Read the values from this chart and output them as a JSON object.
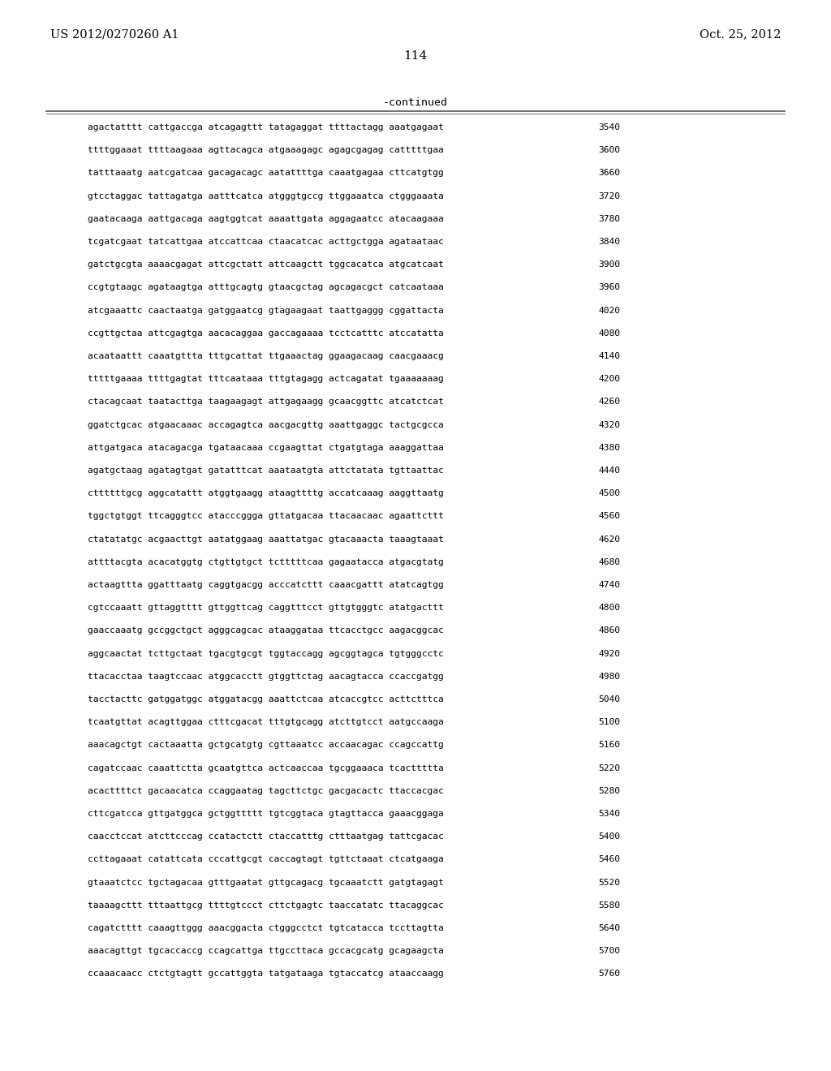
{
  "left_header": "US 2012/0270260 A1",
  "right_header": "Oct. 25, 2012",
  "page_number": "114",
  "continued_label": "-continued",
  "sequence_lines": [
    [
      "agactatttt",
      "cattgaccga",
      "atcagagttt",
      "tatagaggat",
      "ttttactagg",
      "aaatgagaat",
      "3540"
    ],
    [
      "ttttggaaat",
      "ttttaagaaa",
      "agttacagca",
      "atgaaagagc",
      "agagcgagag",
      "catttttgaa",
      "3600"
    ],
    [
      "tatttaaatg",
      "aatcgatcaa",
      "gacagacagc",
      "aatattttga",
      "caaatgagaa",
      "cttcatgtgg",
      "3660"
    ],
    [
      "gtcctaggac",
      "tattagatga",
      "aatttcatca",
      "atgggtgccg",
      "ttggaaatca",
      "ctgggaaata",
      "3720"
    ],
    [
      "gaatacaaga",
      "aattgacaga",
      "aagtggtcat",
      "aaaattgata",
      "aggagaatcc",
      "atacaagaaa",
      "3780"
    ],
    [
      "tcgatcgaat",
      "tatcattgaa",
      "atccattcaa",
      "ctaacatcac",
      "acttgctgga",
      "agataataac",
      "3840"
    ],
    [
      "gatctgcgta",
      "aaaacgagat",
      "attcgctatt",
      "attcaagctt",
      "tggcacatca",
      "atgcatcaat",
      "3900"
    ],
    [
      "ccgtgtaagc",
      "agataagtga",
      "atttgcagtg",
      "gtaacgctag",
      "agcagacgct",
      "catcaataaa",
      "3960"
    ],
    [
      "atcgaaattc",
      "caactaatga",
      "gatggaatcg",
      "gtagaagaat",
      "taattgaggg",
      "cggattacta",
      "4020"
    ],
    [
      "ccgttgctaa",
      "attcgagtga",
      "aacacaggaa",
      "gaccagaaaa",
      "tcctcatttc",
      "atccatatta",
      "4080"
    ],
    [
      "acaataattt",
      "caaatgttta",
      "tttgcattat",
      "ttgaaactag",
      "ggaagacaag",
      "caacgaaacg",
      "4140"
    ],
    [
      "tttttgaaaa",
      "ttttgagtat",
      "tttcaataaa",
      "tttgtagagg",
      "actcagatat",
      "tgaaaaaaag",
      "4200"
    ],
    [
      "ctacagcaat",
      "taatacttga",
      "taagaagagt",
      "attgagaagg",
      "gcaacggttc",
      "atcatctcat",
      "4260"
    ],
    [
      "ggatctgcac",
      "atgaacaaac",
      "accagagtca",
      "aacgacgttg",
      "aaattgaggc",
      "tactgcgcca",
      "4320"
    ],
    [
      "attgatgaca",
      "atacagacga",
      "tgataacaaa",
      "ccgaagttat",
      "ctgatgtaga",
      "aaaggattaa",
      "4380"
    ],
    [
      "agatgctaag",
      "agatagtgat",
      "gatatttcat",
      "aaataatgta",
      "attctatata",
      "tgttaattac",
      "4440"
    ],
    [
      "cttttttgcg",
      "aggcatattt",
      "atggtgaagg",
      "ataagttttg",
      "accatcaaag",
      "aaggttaatg",
      "4500"
    ],
    [
      "tggctgtggt",
      "ttcagggtcc",
      "atacccggga",
      "gttatgacaa",
      "ttacaacaac",
      "agaattcttt",
      "4560"
    ],
    [
      "ctatatatgc",
      "acgaacttgt",
      "aatatggaag",
      "aaattatgac",
      "gtacaaacta",
      "taaagtaaat",
      "4620"
    ],
    [
      "attttacgta",
      "acacatggtg",
      "ctgttgtgct",
      "tctttttcaa",
      "gagaatacca",
      "atgacgtatg",
      "4680"
    ],
    [
      "actaagttta",
      "ggatttaatg",
      "caggtgacgg",
      "acccatcttt",
      "caaacgattt",
      "atatcagtgg",
      "4740"
    ],
    [
      "cgtccaaatt",
      "gttaggtttt",
      "gttggttcag",
      "caggtttcct",
      "gttgtgggtc",
      "atatgacttt",
      "4800"
    ],
    [
      "gaaccaaatg",
      "gccggctgct",
      "agggcagcac",
      "ataaggataa",
      "ttcacctgcc",
      "aagacggcac",
      "4860"
    ],
    [
      "aggcaactat",
      "tcttgctaat",
      "tgacgtgcgt",
      "tggtaccagg",
      "agcggtagca",
      "tgtgggcctc",
      "4920"
    ],
    [
      "ttacacctaa",
      "taagtccaac",
      "atggcacctt",
      "gtggttctag",
      "aacagtacca",
      "ccaccgatgg",
      "4980"
    ],
    [
      "tacctacttc",
      "gatggatggc",
      "atggatacgg",
      "aaattctcaa",
      "atcaccgtcc",
      "acttctttca",
      "5040"
    ],
    [
      "tcaatgttat",
      "acagttggaa",
      "ctttcgacat",
      "tttgtgcagg",
      "atcttgtcct",
      "aatgccaaga",
      "5100"
    ],
    [
      "aaacagctgt",
      "cactaaatta",
      "gctgcatgtg",
      "cgttaaatcc",
      "accaacagac",
      "ccagccattg",
      "5160"
    ],
    [
      "cagatccaac",
      "caaattctta",
      "gcaatgttca",
      "actcaaccaa",
      "tgcggaaaca",
      "tcacttttta",
      "5220"
    ],
    [
      "acacttttct",
      "gacaacatca",
      "ccaggaatag",
      "tagcttctgc",
      "gacgacactc",
      "ttaccacgac",
      "5280"
    ],
    [
      "cttcgatcca",
      "gttgatggca",
      "gctggttttt",
      "tgtcggtaca",
      "gtagttacca",
      "gaaacggaga",
      "5340"
    ],
    [
      "caacctccat",
      "atcttcccag",
      "ccatactctt",
      "ctaccatttg",
      "ctttaatgag",
      "tattcgacac",
      "5400"
    ],
    [
      "ccttagaaat",
      "catattcata",
      "cccattgcgt",
      "caccagtagt",
      "tgttctaaat",
      "ctcatgaaga",
      "5460"
    ],
    [
      "gtaaatctcc",
      "tgctagacaa",
      "gtttgaatat",
      "gttgcagacg",
      "tgcaaatctt",
      "gatgtagagt",
      "5520"
    ],
    [
      "taaaagcttt",
      "tttaattgcg",
      "ttttgtccct",
      "cttctgagtc",
      "taaccatatc",
      "ttacaggcac",
      "5580"
    ],
    [
      "cagatctttt",
      "caaagttggg",
      "aaacggacta",
      "ctgggcctct",
      "tgtcatacca",
      "tccttagtta",
      "5640"
    ],
    [
      "aaacagttgt",
      "tgcaccaccg",
      "ccagcattga",
      "ttgccttaca",
      "gccacgcatg",
      "gcagaagcta",
      "5700"
    ],
    [
      "ccaaacaacc",
      "ctctgtagtt",
      "gccattggta",
      "tatgataaga",
      "tgtaccatcg",
      "ataaccaagg",
      "5760"
    ]
  ]
}
